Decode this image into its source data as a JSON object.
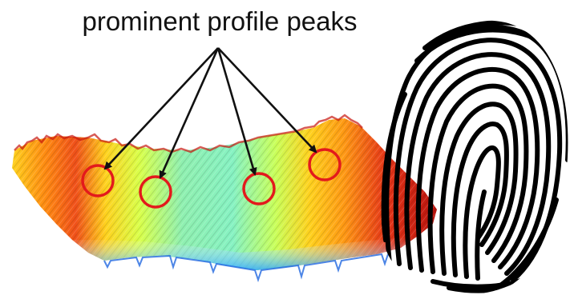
{
  "annotation": {
    "label": "prominent profile peaks"
  },
  "colors": {
    "surface_scale": [
      "#1e6bff",
      "#2fc3ff",
      "#7ff3c8",
      "#d9ff4a",
      "#ffd21e",
      "#ff7a10",
      "#e0190f"
    ],
    "marker": "#e31a1c",
    "arrow": "#111111",
    "ridge": "#000000"
  },
  "icons": [
    "fingerprint-icon",
    "peak-marker-circle",
    "annotation-arrow"
  ]
}
